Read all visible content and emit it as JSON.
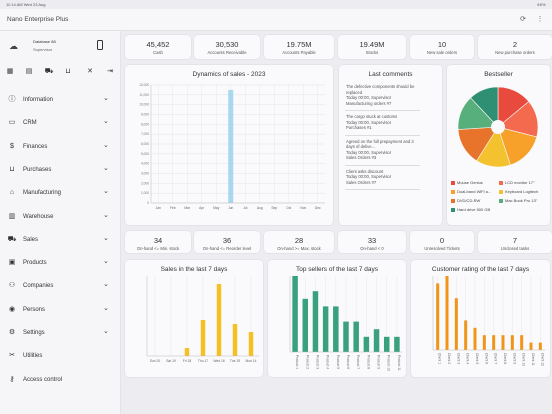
{
  "status": {
    "time": "11:14 AM  Wed 23 Aug",
    "right": "98%"
  },
  "app": {
    "title": "Nano Enterprise Plus"
  },
  "profile": {
    "database": "Database 88",
    "role": "Supervisor"
  },
  "nav": [
    {
      "label": "Information",
      "icon": "info-icon"
    },
    {
      "label": "CRM",
      "icon": "crm-icon"
    },
    {
      "label": "Finances",
      "icon": "dollar-icon"
    },
    {
      "label": "Purchases",
      "icon": "cart-icon"
    },
    {
      "label": "Manufacturing",
      "icon": "factory-icon"
    },
    {
      "label": "Warehouse",
      "icon": "warehouse-icon"
    },
    {
      "label": "Sales",
      "icon": "truck-icon"
    },
    {
      "label": "Products",
      "icon": "box-icon"
    },
    {
      "label": "Companies",
      "icon": "companies-icon"
    },
    {
      "label": "Persons",
      "icon": "person-icon"
    },
    {
      "label": "Settings",
      "icon": "gear-icon"
    },
    {
      "label": "Utilities",
      "icon": "tools-icon"
    },
    {
      "label": "Access control",
      "icon": "key-icon"
    }
  ],
  "kpis_top": [
    {
      "value": "45,452",
      "label": "Cash"
    },
    {
      "value": "30,530",
      "label": "Accounts Receivable"
    },
    {
      "value": "19.75M",
      "label": "Accounts Payable"
    },
    {
      "value": "19.49M",
      "label": "Stocks"
    },
    {
      "value": "10",
      "label": "New sale orders"
    },
    {
      "value": "2",
      "label": "New purchase orders"
    }
  ],
  "kpis_bottom": [
    {
      "value": "34",
      "label": "On-hand <= Min. stock"
    },
    {
      "value": "36",
      "label": "On-hand <= Reorder level"
    },
    {
      "value": "28",
      "label": "On-hand >= Max. stock"
    },
    {
      "value": "33",
      "label": "On-hand < 0"
    },
    {
      "value": "0",
      "label": "Unresolved Tickets"
    },
    {
      "value": "7",
      "label": "Unclosed tasks"
    }
  ],
  "comments": {
    "title": "Last comments",
    "items": [
      {
        "text": "The defective components should be replaced",
        "meta": "Today 00:00, Supervisor",
        "ref": "Manufacturing orders #7"
      },
      {
        "text": "The cargo stuck at customs",
        "meta": "Today 00:00, Supervisor",
        "ref": "Purchases #1"
      },
      {
        "text": "Agreed on the full prepayment and 3 days of delive...",
        "meta": "Today 00:00, Supervisor",
        "ref": "Sales Orders #3"
      },
      {
        "text": "Client asks discount",
        "meta": "Today 00:00, Supervisor",
        "ref": "Sales Orders #7"
      }
    ]
  },
  "colors": {
    "sales": "#a8d8f0",
    "week_sales": "#f5c026",
    "top_sellers": "#3aa17e",
    "rating": "#f29417"
  },
  "charts": [
    {
      "type": "bar",
      "title": "Dynamics of sales - 2023",
      "categories": [
        "Jan",
        "Feb",
        "Mar",
        "Apr",
        "May",
        "Jun",
        "Jul",
        "Aug",
        "Sep",
        "Oct",
        "Nov",
        "Dec"
      ],
      "values": [
        0,
        0,
        0,
        0,
        0,
        11500,
        0,
        0,
        0,
        0,
        0,
        0
      ],
      "ylim": [
        0,
        12000
      ],
      "yticks": [
        "12,000",
        "11,000",
        "10,000",
        "9,000",
        "8,000",
        "7,000",
        "6,000",
        "5,000",
        "4,000",
        "3,000",
        "2,000",
        "1,000",
        "0"
      ]
    },
    {
      "type": "bar",
      "title": "Sales in the last 7 days",
      "categories": [
        "Sun 20",
        "Sat 19",
        "Fri 18",
        "Thu 17",
        "Wed 16",
        "Tue 15",
        "Mon 14"
      ],
      "values": [
        0,
        0,
        2,
        9,
        18,
        8,
        6
      ],
      "ylim": [
        0,
        20
      ]
    },
    {
      "type": "bar",
      "title": "Top sellers of the last 7 days",
      "categories": [
        "Product 1",
        "Product 2",
        "Product 3",
        "Product 4",
        "Product 5",
        "Product 6",
        "Product 7",
        "Product 8",
        "Product 9",
        "Product 10",
        "Product 11"
      ],
      "values": [
        10,
        7,
        8,
        6,
        6,
        4,
        4,
        2,
        3,
        2,
        2
      ],
      "ylim": [
        0,
        10
      ]
    },
    {
      "type": "bar",
      "title": "Customer rating of the last 7 days",
      "categories": [
        "Client 1",
        "Client 2",
        "Client 3",
        "Client 4",
        "Client 5",
        "Client 6",
        "Client 7",
        "Client 8",
        "Client 9",
        "Client 10",
        "Client 11",
        "Client 12"
      ],
      "values": [
        9,
        10,
        7,
        4,
        3,
        2,
        2,
        2,
        2,
        2,
        1,
        1
      ],
      "ylim": [
        0,
        10
      ]
    }
  ],
  "bestseller": {
    "title": "Bestseller",
    "slices": [
      {
        "name": "Mouse Genius",
        "value": 14,
        "color": "#e84a3d"
      },
      {
        "name": "LCD monitor 17\"",
        "value": 15,
        "color": "#f46a4e"
      },
      {
        "name": "Dual-band WiFi a...",
        "value": 16,
        "color": "#f7a12a"
      },
      {
        "name": "Keyboard Logitech",
        "value": 14,
        "color": "#f3c22e"
      },
      {
        "name": "DVD/CD-RW",
        "value": 15,
        "color": "#e8732a"
      },
      {
        "name": "Mac Book Pro 13\"",
        "value": 14,
        "color": "#57b07c"
      },
      {
        "name": "Hard drive 500 GB",
        "value": 12,
        "color": "#2f8f73"
      }
    ]
  },
  "chart_data": [
    {
      "type": "bar",
      "title": "Dynamics of sales - 2023",
      "categories": [
        "Jan",
        "Feb",
        "Mar",
        "Apr",
        "May",
        "Jun",
        "Jul",
        "Aug",
        "Sep",
        "Oct",
        "Nov",
        "Dec"
      ],
      "values": [
        0,
        0,
        0,
        0,
        0,
        11500,
        0,
        0,
        0,
        0,
        0,
        0
      ],
      "ylim": [
        0,
        12000
      ]
    },
    {
      "type": "pie",
      "title": "Bestseller",
      "categories": [
        "Mouse Genius",
        "LCD monitor 17\"",
        "Dual-band WiFi a...",
        "Keyboard Logitech",
        "DVD/CD-RW",
        "Mac Book Pro 13\"",
        "Hard drive 500 GB"
      ],
      "values": [
        14,
        15,
        16,
        14,
        15,
        14,
        12
      ]
    },
    {
      "type": "bar",
      "title": "Sales in the last 7 days",
      "categories": [
        "Sun 20",
        "Sat 19",
        "Fri 18",
        "Thu 17",
        "Wed 16",
        "Tue 15",
        "Mon 14"
      ],
      "values": [
        0,
        0,
        2,
        9,
        18,
        8,
        6
      ]
    },
    {
      "type": "bar",
      "title": "Top sellers of the last 7 days",
      "values": [
        10,
        7,
        8,
        6,
        6,
        4,
        4,
        2,
        3,
        2,
        2
      ]
    },
    {
      "type": "bar",
      "title": "Customer rating of the last 7 days",
      "values": [
        9,
        10,
        7,
        4,
        3,
        2,
        2,
        2,
        2,
        2,
        1,
        1
      ]
    }
  ]
}
